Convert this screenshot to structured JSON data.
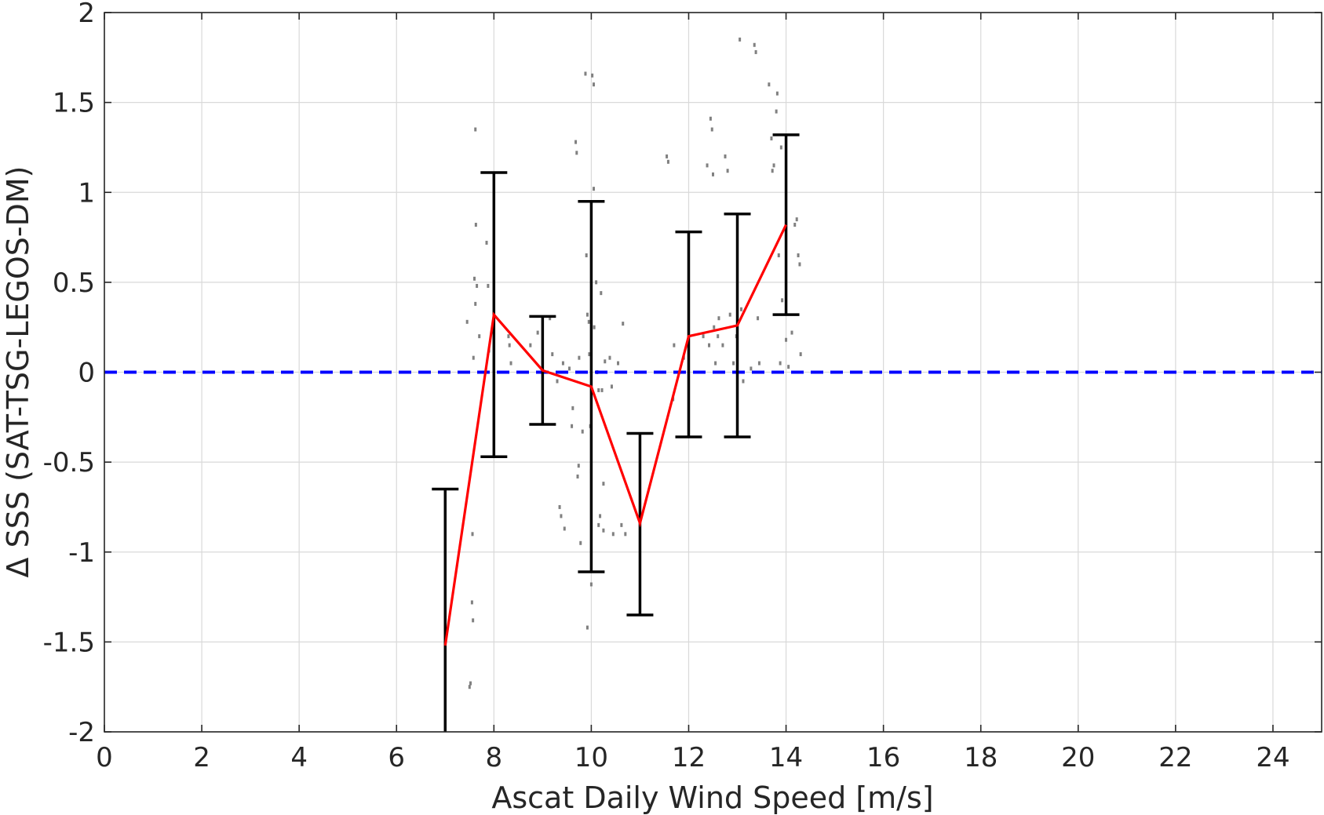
{
  "chart_data": {
    "type": "line",
    "title": "",
    "xlabel": "Ascat Daily Wind Speed [m/s]",
    "ylabel": "Δ SSS (SAT-TSG-LEGOS-DM)",
    "xlim": [
      0,
      25
    ],
    "ylim": [
      -2,
      2
    ],
    "xticks": [
      "0",
      "2",
      "4",
      "6",
      "8",
      "10",
      "12",
      "14",
      "16",
      "18",
      "20",
      "22",
      "24"
    ],
    "yticks": [
      "-2",
      "-1.5",
      "-1",
      "-0.5",
      "0",
      "0.5",
      "1",
      "1.5",
      "2"
    ],
    "grid": true,
    "legend": "none",
    "series": [
      {
        "role": "mean",
        "color": "#ff0000",
        "x": [
          7,
          8,
          9,
          10,
          11,
          12,
          13,
          14
        ],
        "y": [
          -1.52,
          0.32,
          0.01,
          -0.08,
          -0.84,
          0.2,
          0.26,
          0.82
        ]
      },
      {
        "role": "std-errorbars",
        "color": "#000000",
        "x": [
          7,
          8,
          9,
          10,
          11,
          12,
          13,
          14
        ],
        "lower": [
          -2.0,
          -0.47,
          -0.29,
          -1.11,
          -1.35,
          -0.36,
          -0.36,
          0.32
        ],
        "upper": [
          -0.65,
          1.11,
          0.31,
          0.95,
          -0.34,
          0.78,
          0.88,
          1.32
        ]
      },
      {
        "role": "zero-reference",
        "color": "#0000ff",
        "style": "dashed",
        "y": 0
      },
      {
        "role": "samples",
        "color": "#808080",
        "points": [
          [
            7.45,
            0.28
          ],
          [
            7.55,
            -1.28
          ],
          [
            7.57,
            -1.38
          ],
          [
            7.52,
            -1.73
          ],
          [
            7.5,
            -1.75
          ],
          [
            7.56,
            -0.9
          ],
          [
            7.62,
            1.35
          ],
          [
            7.63,
            0.82
          ],
          [
            7.6,
            0.52
          ],
          [
            7.65,
            0.48
          ],
          [
            7.58,
            0.08
          ],
          [
            7.62,
            0.38
          ],
          [
            7.7,
            0.2
          ],
          [
            7.85,
            0.72
          ],
          [
            7.88,
            0.48
          ],
          [
            7.9,
            0.12
          ],
          [
            8.3,
            0.2
          ],
          [
            8.32,
            0.15
          ],
          [
            8.35,
            0.05
          ],
          [
            8.75,
            0.15
          ],
          [
            8.9,
            0.22
          ],
          [
            9.15,
            0.3
          ],
          [
            9.2,
            0.1
          ],
          [
            9.3,
            -0.05
          ],
          [
            9.35,
            -0.75
          ],
          [
            9.38,
            -0.8
          ],
          [
            9.42,
            0.05
          ],
          [
            9.45,
            -0.87
          ],
          [
            9.55,
            0.02
          ],
          [
            9.6,
            -0.3
          ],
          [
            9.62,
            -0.2
          ],
          [
            9.68,
            1.28
          ],
          [
            9.7,
            1.22
          ],
          [
            9.72,
            -0.58
          ],
          [
            9.74,
            -0.52
          ],
          [
            9.75,
            0.08
          ],
          [
            9.78,
            -0.95
          ],
          [
            9.82,
            -0.33
          ],
          [
            9.88,
            1.66
          ],
          [
            9.9,
            0.65
          ],
          [
            9.92,
            0.32
          ],
          [
            9.95,
            0.28
          ],
          [
            9.96,
            0.1
          ],
          [
            9.98,
            -0.3
          ],
          [
            10.0,
            -0.55
          ],
          [
            10.0,
            -1.18
          ],
          [
            9.92,
            -1.42
          ],
          [
            10.02,
            1.65
          ],
          [
            10.05,
            1.6
          ],
          [
            10.06,
            0.25
          ],
          [
            10.05,
            1.02
          ],
          [
            10.1,
            0.5
          ],
          [
            10.12,
            0.0
          ],
          [
            10.15,
            -0.1
          ],
          [
            10.15,
            -0.85
          ],
          [
            10.18,
            -0.8
          ],
          [
            10.2,
            0.44
          ],
          [
            10.22,
            -0.1
          ],
          [
            10.25,
            -0.88
          ],
          [
            10.25,
            -0.62
          ],
          [
            10.28,
            0.06
          ],
          [
            10.38,
            0.08
          ],
          [
            10.42,
            -0.08
          ],
          [
            10.45,
            -0.9
          ],
          [
            10.55,
            0.05
          ],
          [
            10.62,
            -0.85
          ],
          [
            10.65,
            0.27
          ],
          [
            10.7,
            -0.9
          ],
          [
            11.55,
            1.2
          ],
          [
            11.58,
            1.17
          ],
          [
            11.68,
            -0.15
          ],
          [
            11.7,
            0.15
          ],
          [
            11.9,
            0.08
          ],
          [
            12.3,
            0.2
          ],
          [
            12.38,
            1.15
          ],
          [
            12.42,
            0.15
          ],
          [
            12.45,
            1.41
          ],
          [
            12.48,
            1.35
          ],
          [
            12.5,
            1.1
          ],
          [
            12.52,
            0.25
          ],
          [
            12.55,
            0.05
          ],
          [
            12.6,
            0.2
          ],
          [
            12.62,
            0.3
          ],
          [
            12.7,
            0.15
          ],
          [
            12.75,
            1.2
          ],
          [
            12.8,
            1.12
          ],
          [
            12.85,
            0.32
          ],
          [
            12.92,
            0.05
          ],
          [
            12.98,
            0.2
          ],
          [
            13.05,
            1.85
          ],
          [
            13.08,
            0.35
          ],
          [
            13.12,
            -0.05
          ],
          [
            13.28,
            0.02
          ],
          [
            13.35,
            1.82
          ],
          [
            13.38,
            1.78
          ],
          [
            13.42,
            0.3
          ],
          [
            13.45,
            0.05
          ],
          [
            13.65,
            1.6
          ],
          [
            13.7,
            1.3
          ],
          [
            13.72,
            1.12
          ],
          [
            13.75,
            1.15
          ],
          [
            13.8,
            1.45
          ],
          [
            13.82,
            1.55
          ],
          [
            13.85,
            0.65
          ],
          [
            13.88,
            0.05
          ],
          [
            13.9,
            1.25
          ],
          [
            13.92,
            0.4
          ],
          [
            14.0,
            0.18
          ],
          [
            14.05,
            0.03
          ],
          [
            14.12,
            0.22
          ],
          [
            14.18,
            0.82
          ],
          [
            14.22,
            0.85
          ],
          [
            14.25,
            0.65
          ],
          [
            14.28,
            0.6
          ],
          [
            14.3,
            0.1
          ]
        ]
      }
    ]
  }
}
